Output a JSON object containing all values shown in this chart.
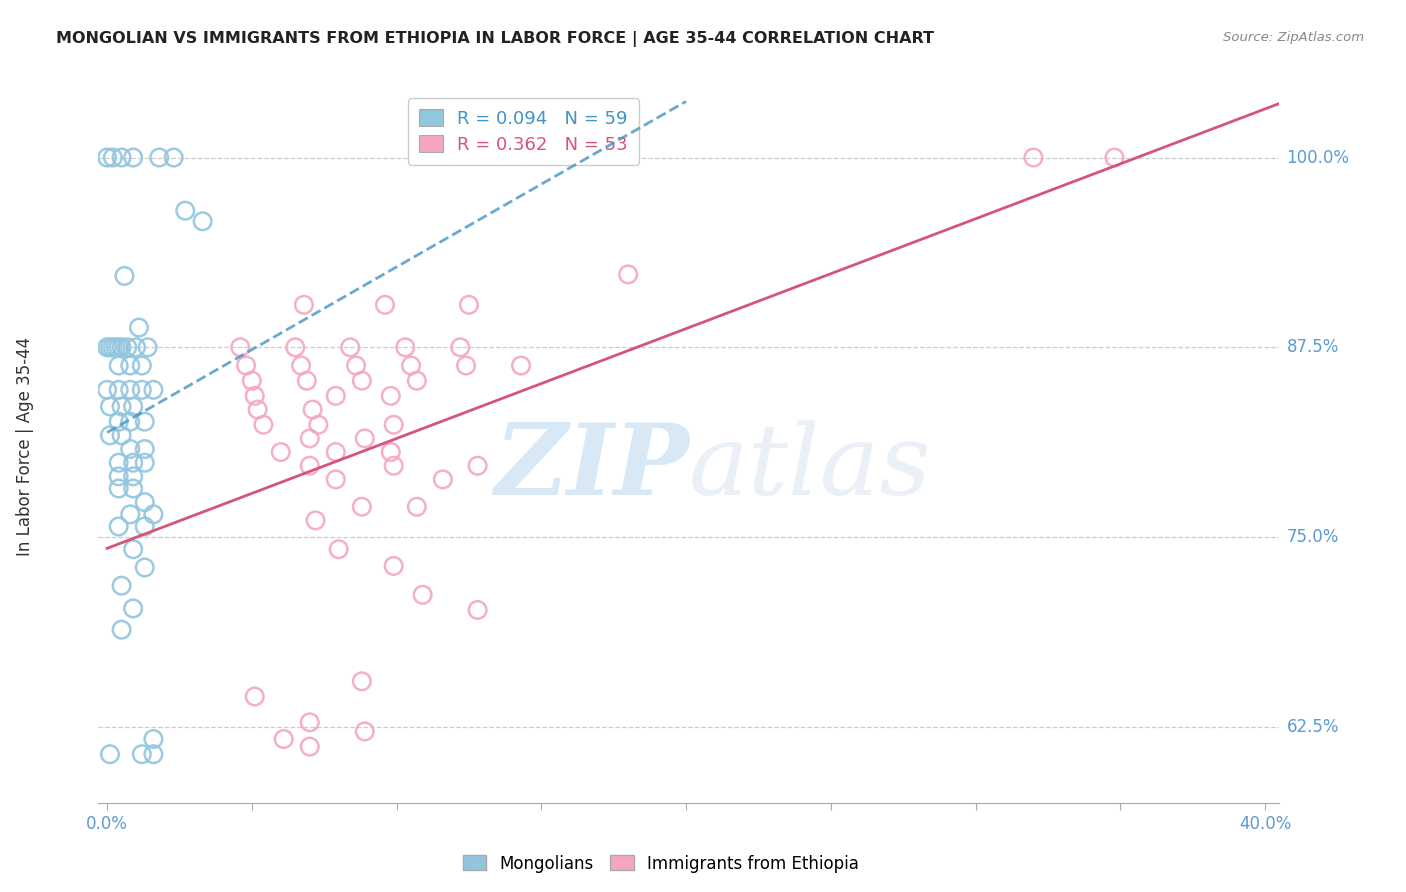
{
  "title": "MONGOLIAN VS IMMIGRANTS FROM ETHIOPIA IN LABOR FORCE | AGE 35-44 CORRELATION CHART",
  "source": "Source: ZipAtlas.com",
  "ylabel": "In Labor Force | Age 35-44",
  "yticks": [
    0.625,
    0.75,
    0.875,
    1.0
  ],
  "ytick_labels": [
    "62.5%",
    "75.0%",
    "87.5%",
    "100.0%"
  ],
  "xlim": [
    -0.003,
    0.405
  ],
  "ylim": [
    0.575,
    1.045
  ],
  "legend_r1": "0.094",
  "legend_n1": "59",
  "legend_r2": "0.362",
  "legend_n2": "53",
  "mongolian_color": "#92c5de",
  "ethiopia_color": "#f4a6c0",
  "mongolian_line_color": "#4393c3",
  "ethiopia_line_color": "#d6537a",
  "mongolian_line_xmax": 0.2,
  "mongolian_scatter": [
    [
      0.0,
      1.0
    ],
    [
      0.002,
      1.0
    ],
    [
      0.005,
      1.0
    ],
    [
      0.009,
      1.0
    ],
    [
      0.018,
      1.0
    ],
    [
      0.023,
      1.0
    ],
    [
      0.027,
      0.965
    ],
    [
      0.033,
      0.958
    ],
    [
      0.006,
      0.922
    ],
    [
      0.011,
      0.888
    ],
    [
      0.0,
      0.875
    ],
    [
      0.001,
      0.875
    ],
    [
      0.002,
      0.875
    ],
    [
      0.003,
      0.875
    ],
    [
      0.004,
      0.875
    ],
    [
      0.005,
      0.875
    ],
    [
      0.007,
      0.875
    ],
    [
      0.01,
      0.875
    ],
    [
      0.014,
      0.875
    ],
    [
      0.004,
      0.863
    ],
    [
      0.008,
      0.863
    ],
    [
      0.012,
      0.863
    ],
    [
      0.0,
      0.847
    ],
    [
      0.004,
      0.847
    ],
    [
      0.008,
      0.847
    ],
    [
      0.012,
      0.847
    ],
    [
      0.016,
      0.847
    ],
    [
      0.001,
      0.836
    ],
    [
      0.005,
      0.836
    ],
    [
      0.009,
      0.836
    ],
    [
      0.004,
      0.826
    ],
    [
      0.008,
      0.826
    ],
    [
      0.013,
      0.826
    ],
    [
      0.001,
      0.817
    ],
    [
      0.005,
      0.817
    ],
    [
      0.008,
      0.808
    ],
    [
      0.013,
      0.808
    ],
    [
      0.004,
      0.799
    ],
    [
      0.009,
      0.799
    ],
    [
      0.013,
      0.799
    ],
    [
      0.004,
      0.79
    ],
    [
      0.009,
      0.79
    ],
    [
      0.004,
      0.782
    ],
    [
      0.009,
      0.782
    ],
    [
      0.013,
      0.773
    ],
    [
      0.008,
      0.765
    ],
    [
      0.016,
      0.765
    ],
    [
      0.004,
      0.757
    ],
    [
      0.013,
      0.757
    ],
    [
      0.009,
      0.742
    ],
    [
      0.013,
      0.73
    ],
    [
      0.005,
      0.718
    ],
    [
      0.009,
      0.703
    ],
    [
      0.005,
      0.689
    ],
    [
      0.016,
      0.617
    ],
    [
      0.001,
      0.607
    ],
    [
      0.012,
      0.607
    ],
    [
      0.016,
      0.607
    ]
  ],
  "ethiopia_scatter": [
    [
      0.32,
      1.0
    ],
    [
      0.348,
      1.0
    ],
    [
      0.18,
      0.923
    ],
    [
      0.068,
      0.903
    ],
    [
      0.096,
      0.903
    ],
    [
      0.125,
      0.903
    ],
    [
      0.046,
      0.875
    ],
    [
      0.065,
      0.875
    ],
    [
      0.084,
      0.875
    ],
    [
      0.103,
      0.875
    ],
    [
      0.122,
      0.875
    ],
    [
      0.048,
      0.863
    ],
    [
      0.067,
      0.863
    ],
    [
      0.086,
      0.863
    ],
    [
      0.105,
      0.863
    ],
    [
      0.124,
      0.863
    ],
    [
      0.143,
      0.863
    ],
    [
      0.05,
      0.853
    ],
    [
      0.069,
      0.853
    ],
    [
      0.088,
      0.853
    ],
    [
      0.107,
      0.853
    ],
    [
      0.051,
      0.843
    ],
    [
      0.079,
      0.843
    ],
    [
      0.098,
      0.843
    ],
    [
      0.052,
      0.834
    ],
    [
      0.071,
      0.834
    ],
    [
      0.054,
      0.824
    ],
    [
      0.073,
      0.824
    ],
    [
      0.099,
      0.824
    ],
    [
      0.07,
      0.815
    ],
    [
      0.089,
      0.815
    ],
    [
      0.06,
      0.806
    ],
    [
      0.079,
      0.806
    ],
    [
      0.098,
      0.806
    ],
    [
      0.07,
      0.797
    ],
    [
      0.099,
      0.797
    ],
    [
      0.128,
      0.797
    ],
    [
      0.079,
      0.788
    ],
    [
      0.116,
      0.788
    ],
    [
      0.088,
      0.77
    ],
    [
      0.107,
      0.77
    ],
    [
      0.072,
      0.761
    ],
    [
      0.08,
      0.742
    ],
    [
      0.099,
      0.731
    ],
    [
      0.109,
      0.712
    ],
    [
      0.128,
      0.702
    ],
    [
      0.088,
      0.655
    ],
    [
      0.051,
      0.645
    ],
    [
      0.07,
      0.628
    ],
    [
      0.089,
      0.622
    ],
    [
      0.061,
      0.617
    ],
    [
      0.07,
      0.612
    ]
  ],
  "watermark_zip": "ZIP",
  "watermark_atlas": "atlas",
  "background_color": "#ffffff",
  "grid_color": "#cccccc",
  "title_color": "#222222",
  "tick_color": "#5b9bd5",
  "xtick_positions": [
    0.0,
    0.05,
    0.1,
    0.15,
    0.2,
    0.25,
    0.3,
    0.35,
    0.4
  ]
}
